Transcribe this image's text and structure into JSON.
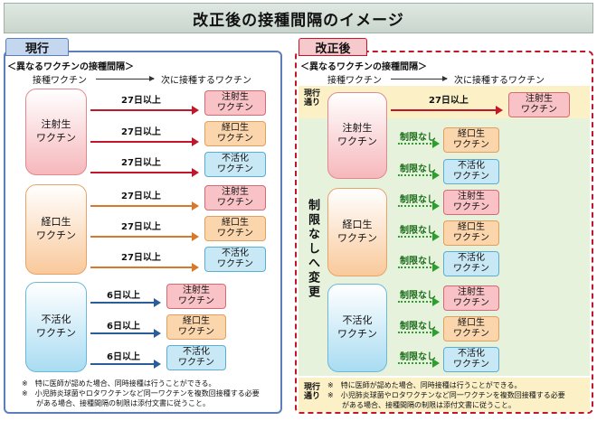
{
  "title": "改正後の接種間隔のイメージ",
  "left": {
    "tab": "現行",
    "section_heading": "＜異なるワクチンの接種間隔＞",
    "from_label": "接種ワクチン",
    "to_label": "次に接種するワクチン",
    "groups": [
      {
        "name": "注射生\nワクチン",
        "rows": [
          {
            "interval": "27日以上",
            "target": "注射生\nワクチン"
          },
          {
            "interval": "27日以上",
            "target": "経口生\nワクチン"
          },
          {
            "interval": "27日以上",
            "target": "不活化\nワクチン"
          }
        ]
      },
      {
        "name": "経口生\nワクチン",
        "rows": [
          {
            "interval": "27日以上",
            "target": "注射生\nワクチン"
          },
          {
            "interval": "27日以上",
            "target": "経口生\nワクチン"
          },
          {
            "interval": "27日以上",
            "target": "不活化\nワクチン"
          }
        ]
      },
      {
        "name": "不活化\nワクチン",
        "rows": [
          {
            "interval": "6日以上",
            "target": "注射生\nワクチン"
          },
          {
            "interval": "6日以上",
            "target": "経口生\nワクチン"
          },
          {
            "interval": "6日以上",
            "target": "不活化\nワクチン"
          }
        ]
      }
    ],
    "notes": [
      "※　特に医師が認めた場合、同時接種は行うことができる。",
      "※　小児肺炎球菌やロタワクチンなど同一ワクチンを複数回接種する必要",
      "　　がある場合、接種間隔の制限は添付文書に従うこと。"
    ]
  },
  "right": {
    "tab": "改正後",
    "section_heading": "＜異なるワクチンの接種間隔＞",
    "from_label": "接種ワクチン",
    "to_label": "次に接種するワクチン",
    "current_rule_label": "現行\n通り",
    "vertical_label": "制限なしへ変更",
    "first_row": {
      "interval": "27日以上",
      "target": "注射生\nワクチン"
    },
    "no_limit_label": "制限なし",
    "groups": [
      {
        "name": "注射生\nワクチン",
        "targets": [
          "経口生\nワクチン",
          "不活化\nワクチン"
        ]
      },
      {
        "name": "経口生\nワクチン",
        "targets": [
          "注射生\nワクチン",
          "経口生\nワクチン",
          "不活化\nワクチン"
        ]
      },
      {
        "name": "不活化\nワクチン",
        "targets": [
          "注射生\nワクチン",
          "経口生\nワクチン",
          "不活化\nワクチン"
        ]
      }
    ],
    "notes": [
      "※　特に医師が認めた場合、同時接種は行うことができる。",
      "※　小児肺炎球菌やロタワクチンなど同一ワクチンを複数回接種する必要",
      "　　がある場合、接種間隔の制限は添付文書に従うこと。"
    ]
  }
}
